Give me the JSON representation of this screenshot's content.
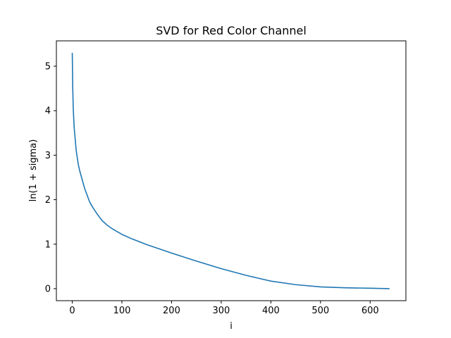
{
  "chart_data": {
    "type": "line",
    "title": "SVD for Red Color Channel",
    "xlabel": "i",
    "ylabel": "ln(1 + sigma)",
    "xlim": [
      -32,
      672
    ],
    "ylim": [
      -0.27,
      5.57
    ],
    "xticks": [
      0,
      100,
      200,
      300,
      400,
      500,
      600
    ],
    "yticks": [
      0,
      1,
      2,
      3,
      4,
      5
    ],
    "grid": false,
    "legend": "none",
    "series": [
      {
        "color": "#1f77b4",
        "x": [
          0,
          1,
          2,
          3,
          4,
          6,
          8,
          10,
          12,
          15,
          20,
          25,
          30,
          35,
          40,
          50,
          60,
          70,
          80,
          100,
          120,
          150,
          200,
          250,
          300,
          350,
          400,
          450,
          500,
          550,
          600,
          639
        ],
        "y": [
          5.3,
          4.5,
          4.05,
          3.8,
          3.6,
          3.35,
          3.1,
          2.95,
          2.8,
          2.65,
          2.45,
          2.25,
          2.1,
          1.95,
          1.85,
          1.68,
          1.53,
          1.43,
          1.35,
          1.22,
          1.12,
          0.99,
          0.8,
          0.62,
          0.45,
          0.3,
          0.17,
          0.09,
          0.04,
          0.02,
          0.01,
          0.0
        ]
      }
    ]
  }
}
